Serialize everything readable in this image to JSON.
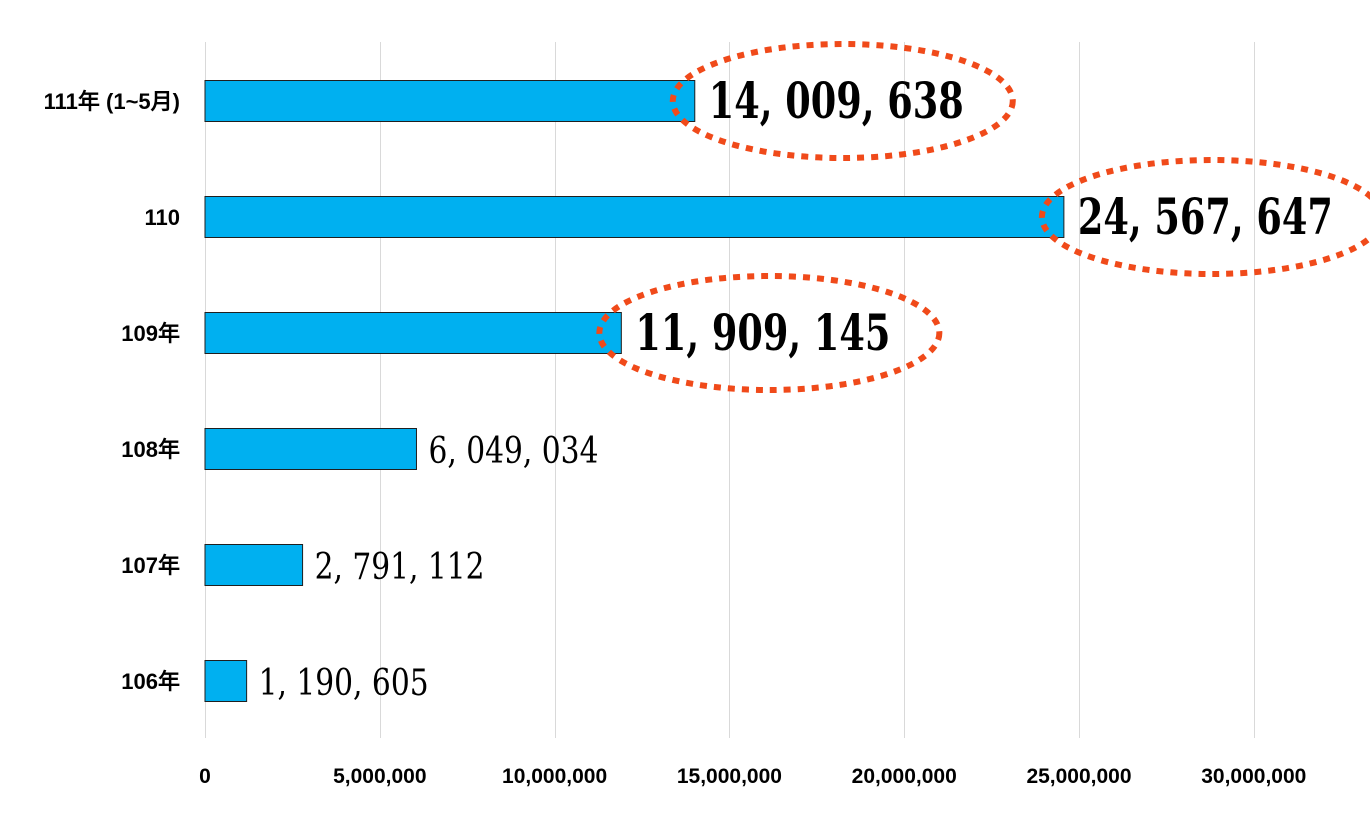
{
  "chart_data": {
    "type": "bar",
    "orientation": "horizontal",
    "title": "",
    "xlabel": "",
    "ylabel": "",
    "xlim": [
      0,
      30000000
    ],
    "grid": true,
    "legend": "none",
    "categories": [
      "111年 (1~5月)",
      "110",
      "109年",
      "108年",
      "107年",
      "106年"
    ],
    "values": [
      14009638,
      24567647,
      11909145,
      6049034,
      2791112,
      1190605
    ],
    "data_labels": [
      "14, 009, 638",
      "24, 567, 647",
      "11, 909, 145",
      "6, 049, 034",
      "2, 791, 112",
      "1, 190, 605"
    ],
    "highlighted": [
      true,
      true,
      true,
      false,
      false,
      false
    ],
    "x_ticks": [
      0,
      5000000,
      10000000,
      15000000,
      20000000,
      25000000,
      30000000
    ],
    "x_tick_labels": [
      "0",
      "5,000,000",
      "10,000,000",
      "15,000,000",
      "20,000,000",
      "25,000,000",
      "30,000,000"
    ],
    "colors": {
      "bar": "#00B0F0",
      "bar_outline": "#1F1F1F",
      "highlight_text": "#FF0000",
      "highlight_ellipse": "#F04A1A",
      "gridline": "#D9D9D9",
      "text": "#000000"
    }
  }
}
